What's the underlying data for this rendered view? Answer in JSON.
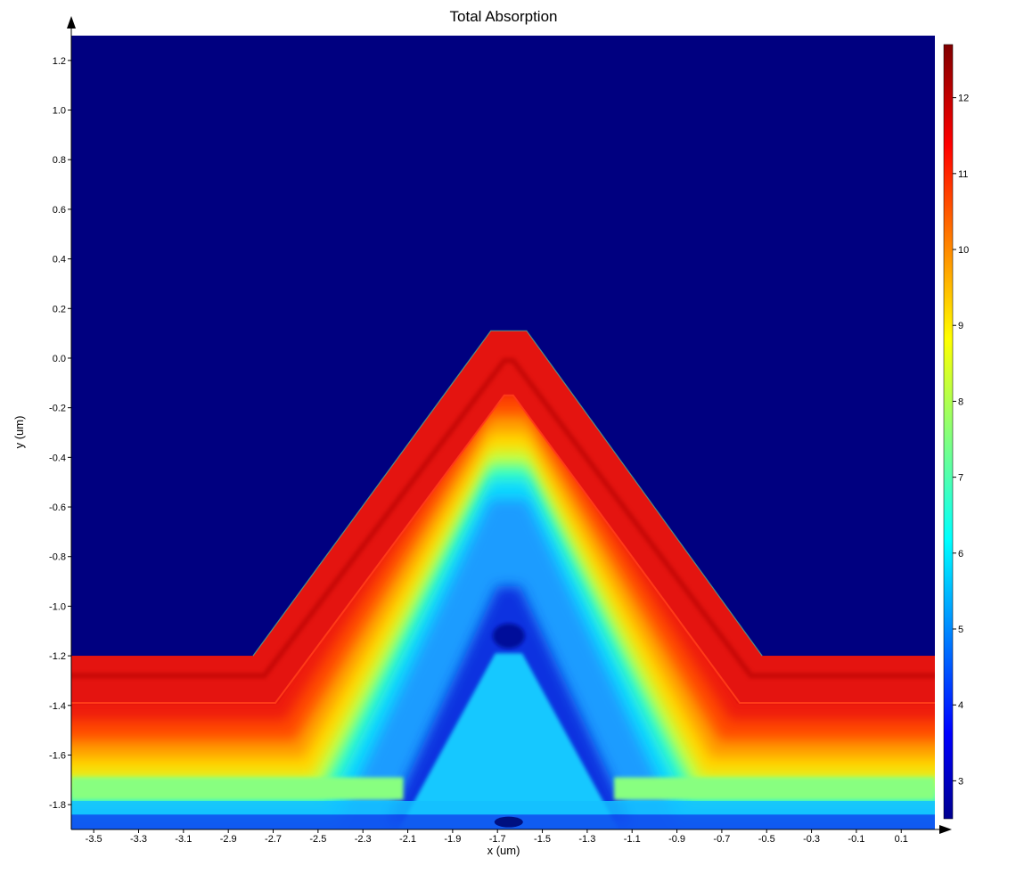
{
  "chart_data": {
    "type": "heatmap",
    "title": "Total Absorption",
    "xlabel": "x (um)",
    "ylabel": "y (um)",
    "xlim": [
      -3.6,
      0.25
    ],
    "ylim": [
      -1.9,
      1.3
    ],
    "x_ticks": [
      "-3.5",
      "-3.3",
      "-3.1",
      "-2.9",
      "-2.7",
      "-2.5",
      "-2.3",
      "-2.1",
      "-1.9",
      "-1.7",
      "-1.5",
      "-1.3",
      "-1.1",
      "-0.9",
      "-0.7",
      "-0.5",
      "-0.3",
      "-0.1",
      "0.1"
    ],
    "y_ticks": [
      "1.2",
      "1.0",
      "0.8",
      "0.6",
      "0.4",
      "0.2",
      "0.0",
      "-0.2",
      "-0.4",
      "-0.6",
      "-0.8",
      "-1.0",
      "-1.2",
      "-1.4",
      "-1.6",
      "-1.8"
    ],
    "colorbar": {
      "min": 2.5,
      "max": 12.7,
      "ticks": [
        "3",
        "4",
        "5",
        "6",
        "7",
        "8",
        "9",
        "10",
        "11",
        "12"
      ],
      "colormap": "jet"
    },
    "structure": {
      "apex_x": -1.65,
      "top_flat_y": 0.11,
      "top_flat_halfwidth": 0.08,
      "base_y": -1.2,
      "outer_left_base_x": -2.79,
      "outer_right_base_x": -0.52,
      "inner_boundary_offset": 0.2,
      "band_thickness": 0.18
    },
    "colors": {
      "background": "#000080",
      "shell": "#e01010",
      "shell_dark": "#a00000"
    }
  }
}
